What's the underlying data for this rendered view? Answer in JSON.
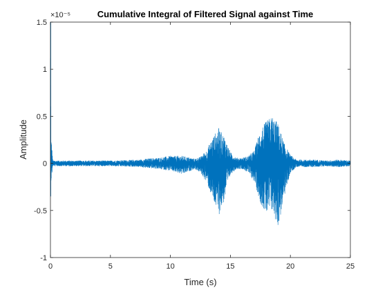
{
  "chart_data": {
    "type": "line",
    "title": "Cumulative Integral of Filtered Signal against Time",
    "xlabel": "Time (s)",
    "ylabel": "Amplitude",
    "xlim": [
      0,
      25
    ],
    "ylim": [
      -1,
      1.5
    ],
    "y_scale_exponent": "×10⁻⁵",
    "x_ticks": [
      0,
      5,
      10,
      15,
      20,
      25
    ],
    "x_tick_labels": [
      "0",
      "5",
      "10",
      "15",
      "20",
      "25"
    ],
    "y_ticks": [
      -1,
      -0.5,
      0,
      0.5,
      1,
      1.5
    ],
    "y_tick_labels": [
      "-1",
      "-0.5",
      "0",
      "0.5",
      "1",
      "1.5"
    ],
    "grid": false,
    "line_color": "#0072BD",
    "series": [
      {
        "envelope_x": [
          0,
          0.05,
          0.2,
          2,
          5,
          7.5,
          8,
          9,
          10,
          11,
          12,
          12.5,
          13,
          13.5,
          14,
          14.5,
          15,
          15.5,
          16,
          16.5,
          17,
          17.5,
          18,
          18.5,
          19,
          19.5,
          20,
          20.5,
          21,
          22,
          23,
          24,
          25
        ],
        "envelope_upper": [
          1.5,
          0.3,
          0.03,
          0.03,
          0.03,
          0.04,
          0.05,
          0.06,
          0.08,
          0.08,
          0.05,
          0.07,
          0.14,
          0.27,
          0.38,
          0.29,
          0.12,
          0.06,
          0.06,
          0.08,
          0.14,
          0.37,
          0.45,
          0.51,
          0.42,
          0.21,
          0.09,
          0.04,
          0.04,
          0.04,
          0.03,
          0.04,
          0.03
        ],
        "envelope_lower": [
          -0.35,
          -0.2,
          -0.03,
          -0.03,
          -0.03,
          -0.04,
          -0.05,
          -0.06,
          -0.08,
          -0.12,
          -0.06,
          -0.1,
          -0.2,
          -0.38,
          -0.56,
          -0.4,
          -0.12,
          -0.06,
          -0.06,
          -0.1,
          -0.2,
          -0.42,
          -0.55,
          -0.52,
          -0.68,
          -0.35,
          -0.1,
          -0.04,
          -0.04,
          -0.04,
          -0.03,
          -0.04,
          -0.03
        ]
      }
    ]
  }
}
